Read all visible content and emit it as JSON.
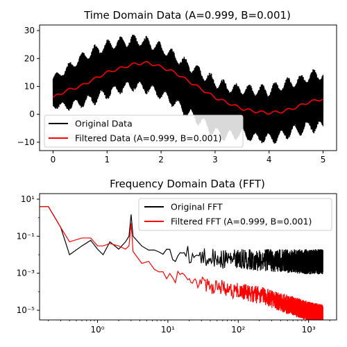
{
  "chart_data": [
    {
      "type": "line",
      "title": "Time Domain Data (A=0.999, B=0.001)",
      "xlabel": "",
      "ylabel": "",
      "xlim": [
        -0.25,
        5.25
      ],
      "ylim": [
        -13,
        32
      ],
      "xticks": [
        0,
        1,
        2,
        3,
        4,
        5
      ],
      "xtick_labels": [
        "0",
        "1",
        "2",
        "3",
        "4",
        "5"
      ],
      "yticks": [
        -10,
        0,
        10,
        20,
        30
      ],
      "ytick_labels": [
        "−10",
        "0",
        "10",
        "20",
        "30"
      ],
      "legend_position": "lower-left",
      "series": [
        {
          "name": "Original Data",
          "color": "#000000",
          "style": "band",
          "x": [
            0,
            0.25,
            0.5,
            0.75,
            1,
            1.25,
            1.5,
            1.75,
            2,
            2.25,
            2.5,
            2.75,
            3,
            3.25,
            3.5,
            3.75,
            4,
            4.25,
            4.5,
            4.75,
            5
          ],
          "upper": [
            14,
            18,
            22,
            25,
            27,
            28,
            29,
            28,
            26,
            23,
            20,
            17,
            14,
            12,
            11,
            11,
            11,
            13,
            14,
            16,
            17
          ],
          "lower": [
            2,
            1,
            2,
            3,
            5,
            7,
            8,
            7,
            5,
            2,
            -2,
            -5,
            -9,
            -10,
            -9,
            -11,
            -11,
            -10,
            -8,
            -7,
            -7
          ]
        },
        {
          "name": "Filtered Data (A=0.999, B=0.001)",
          "color": "#ff0000",
          "style": "line",
          "x": [
            0,
            0.25,
            0.5,
            0.75,
            1,
            1.25,
            1.5,
            1.75,
            2,
            2.25,
            2.5,
            2.75,
            3,
            3.25,
            3.5,
            3.75,
            4,
            4.25,
            4.5,
            4.75,
            5
          ],
          "y": [
            6,
            8.5,
            10,
            12.5,
            15,
            16.5,
            18,
            18.5,
            17,
            15,
            12,
            9,
            6,
            4,
            2,
            1,
            0.5,
            1,
            2.5,
            4.5,
            5.5
          ]
        }
      ]
    },
    {
      "type": "line",
      "title": "Frequency Domain Data (FFT)",
      "xlabel": "",
      "ylabel": "",
      "xscale": "log",
      "yscale": "log",
      "xlim": [
        0.15,
        2500
      ],
      "ylim": [
        3e-06,
        20
      ],
      "xticks": [
        1,
        10,
        100,
        1000
      ],
      "xtick_labels": [
        "10⁰",
        "10¹",
        "10²",
        "10³"
      ],
      "yticks": [
        1e-05,
        0.001,
        0.1,
        10
      ],
      "ytick_labels": [
        "10⁻⁵",
        "10⁻³",
        "10⁻¹",
        "10¹"
      ],
      "legend_position": "upper-right",
      "series": [
        {
          "name": "Original FFT",
          "color": "#000000",
          "x": [
            0.15,
            0.2,
            0.3,
            0.4,
            0.6,
            0.8,
            1.0,
            1.2,
            1.5,
            2.0,
            2.5,
            2.8,
            3.0,
            3.2,
            3.5,
            5,
            10,
            20,
            50,
            100,
            200,
            500,
            1000,
            1600
          ],
          "y": [
            4,
            4,
            0.3,
            0.01,
            0.03,
            0.06,
            0.02,
            0.01,
            0.05,
            0.02,
            0.05,
            0.1,
            1.5,
            0.1,
            0.05,
            0.05,
            0.04,
            0.03,
            0.02,
            0.02,
            0.02,
            0.02,
            0.02,
            0.02
          ],
          "spread": [
            1,
            1,
            1,
            1,
            1,
            1,
            1,
            1,
            1,
            1,
            1,
            1,
            1,
            1,
            5,
            10,
            12,
            12,
            15,
            15,
            20,
            25,
            30,
            30
          ]
        },
        {
          "name": "Filtered FFT (A=0.999, B=0.001)",
          "color": "#ff0000",
          "x": [
            0.15,
            0.2,
            0.3,
            0.4,
            0.6,
            0.8,
            1.0,
            1.2,
            1.5,
            2.0,
            2.5,
            2.8,
            3.0,
            3.2,
            3.5,
            5,
            10,
            20,
            50,
            100,
            200,
            500,
            1000,
            1600
          ],
          "y": [
            4,
            4,
            0.3,
            0.05,
            0.08,
            0.08,
            0.03,
            0.03,
            0.04,
            0.03,
            0.02,
            0.03,
            0.5,
            0.015,
            0.01,
            0.005,
            0.002,
            0.001,
            0.0005,
            0.0003,
            0.0002,
            7e-05,
            3e-05,
            2e-05
          ],
          "spread": [
            1,
            1,
            1,
            1,
            1,
            1,
            1,
            1,
            1,
            1,
            1,
            1,
            1,
            1,
            3,
            5,
            6,
            8,
            10,
            10,
            12,
            15,
            15,
            15
          ]
        }
      ]
    }
  ]
}
